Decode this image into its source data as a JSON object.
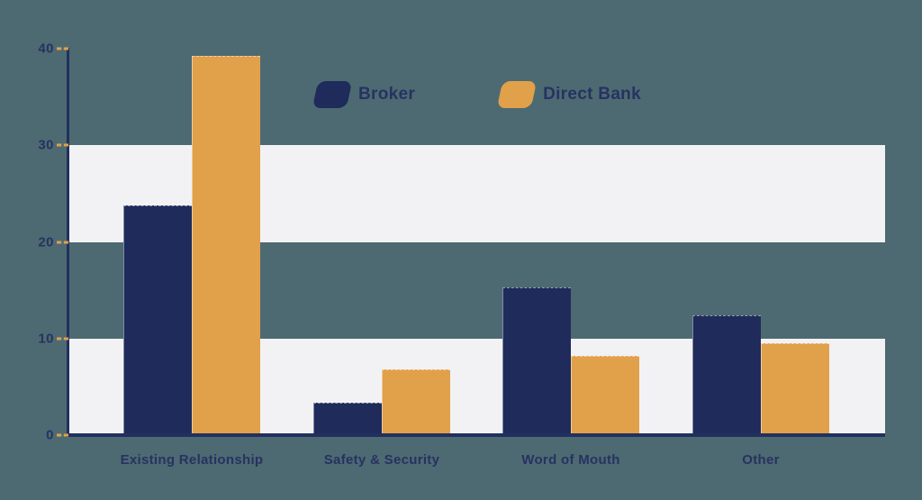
{
  "colors": {
    "background": "#4d6a72",
    "stripe": "#f2f2f5",
    "axis": "#22305e",
    "tick_dash": "#e1a04a",
    "text": "#273261",
    "broker": "#1f2b5a",
    "direct_bank": "#e1a04a"
  },
  "legend": {
    "items": [
      {
        "label": "Broker",
        "color": "#1f2b5a",
        "swatch": "navy-rounded-parallelogram"
      },
      {
        "label": "Direct Bank",
        "color": "#e1a04a",
        "swatch": "orange-rounded-parallelogram"
      }
    ]
  },
  "chart_data": {
    "type": "bar",
    "title": "",
    "xlabel": "",
    "ylabel": "",
    "categories": [
      "Existing Relationship",
      "Safety & Security",
      "Word of Mouth",
      "Other"
    ],
    "series": [
      {
        "name": "Broker",
        "color": "#1f2b5a",
        "values": [
          23.8,
          3.4,
          15.3,
          12.4
        ]
      },
      {
        "name": "Direct Bank",
        "color": "#e1a04a",
        "values": [
          39.3,
          6.8,
          8.2,
          9.5
        ]
      }
    ],
    "ylim": [
      0,
      40
    ],
    "yticks": [
      0,
      10,
      20,
      30,
      40
    ],
    "grid": "alternating horizontal light bands covering value ranges 0-10 and 20-30",
    "legend_position": "top-center"
  }
}
